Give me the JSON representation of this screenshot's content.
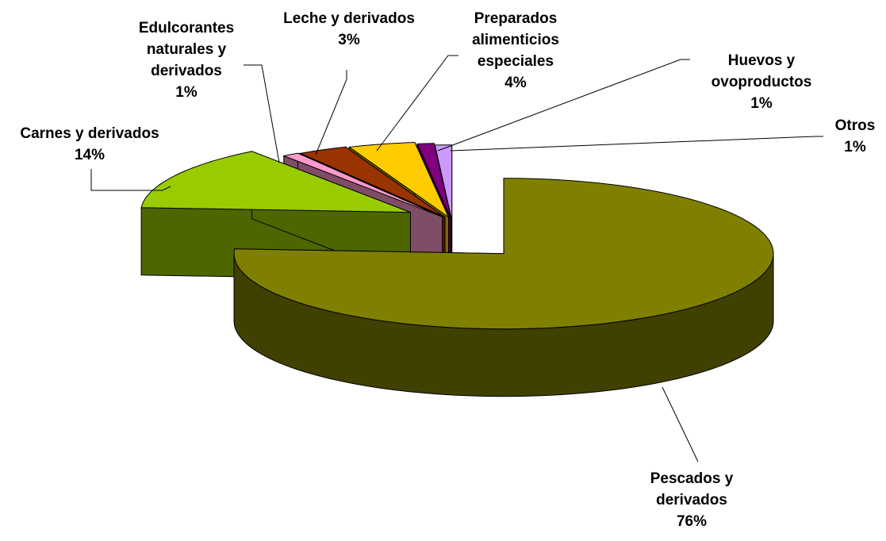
{
  "chart_data": {
    "type": "pie3d",
    "categories": [
      "Pescados y derivados",
      "Carnes y derivados",
      "Edulcorantes naturales y derivados",
      "Leche y derivados",
      "Preparados alimenticios especiales",
      "Huevos y ovoproductos",
      "Otros"
    ],
    "values": [
      76,
      14,
      1,
      3,
      4,
      1,
      1
    ],
    "value_labels": [
      "76%",
      "14%",
      "1%",
      "3%",
      "4%",
      "1%",
      "1%"
    ],
    "colors": [
      "#808000",
      "#99cc00",
      "#ff99cc",
      "#993300",
      "#ffcc00",
      "#800080",
      "#cc99ff"
    ]
  }
}
